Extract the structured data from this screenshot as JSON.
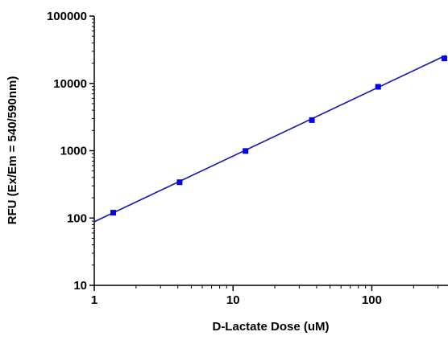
{
  "chart_data": {
    "type": "scatter",
    "xlabel": "D-Lactate Dose (uM)",
    "ylabel": "RFU (Ex/Em = 540/590nm)",
    "x_scale": "log",
    "y_scale": "log",
    "xlim": [
      1,
      340
    ],
    "ylim": [
      10,
      100000
    ],
    "x_ticks": [
      1,
      10,
      100
    ],
    "x_tick_labels": [
      "1",
      "10",
      "100"
    ],
    "y_ticks": [
      10,
      100,
      1000,
      10000,
      100000
    ],
    "y_tick_labels": [
      "10",
      "100",
      "1000",
      "10000",
      "100000"
    ],
    "grid": false,
    "legend": "none",
    "series": [
      {
        "x": [
          1.37,
          4.12,
          12.3,
          37.0,
          111.0,
          333.0
        ],
        "y": [
          120,
          340,
          990,
          2850,
          8900,
          23500
        ],
        "marker": "square",
        "color": "#0000ee"
      }
    ],
    "fit_line": {
      "x": [
        1,
        340
      ],
      "y": [
        88,
        26000
      ],
      "color": "#1414b4"
    }
  }
}
